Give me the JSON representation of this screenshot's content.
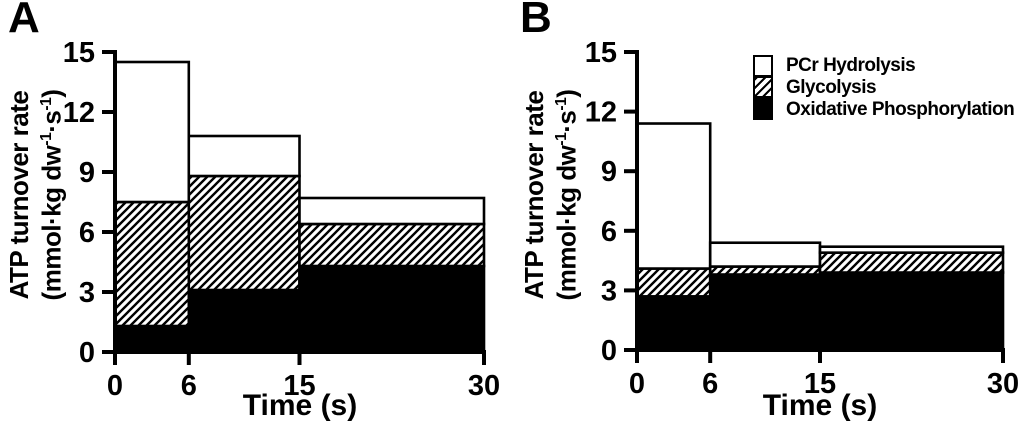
{
  "panels": [
    {
      "label": "A",
      "xlabel": "Time (s)",
      "ylabel_line1": "ATP turnover rate",
      "ylabel_open": "(mmol·kg dw",
      "ylabel_sup1": "-1",
      "ylabel_mid": "·s",
      "ylabel_sup2": "-1",
      "ylabel_close": ")"
    },
    {
      "label": "B",
      "xlabel": "Time (s)",
      "ylabel_line1": "ATP turnover rate",
      "ylabel_open": "(mmol·kg dw",
      "ylabel_sup1": "-1",
      "ylabel_mid": "·s",
      "ylabel_sup2": "-1",
      "ylabel_close": ")"
    }
  ],
  "legend": {
    "items": [
      {
        "label": "PCr Hydrolysis",
        "swatch": "white"
      },
      {
        "label": "Glycolysis",
        "swatch": "hatch"
      },
      {
        "label": "Oxidative Phosphorylation",
        "swatch": "black"
      }
    ]
  },
  "colors": {
    "ink": "#000000",
    "paper": "#ffffff"
  },
  "chart_data": [
    {
      "panel": "A",
      "type": "bar",
      "stacked": true,
      "title": "",
      "xlabel": "Time (s)",
      "ylabel": "ATP turnover rate (mmol·kg dw⁻¹·s⁻¹)",
      "x_edges": [
        0,
        6,
        15,
        30
      ],
      "categories": [
        "0-6 s",
        "6-15 s",
        "15-30 s"
      ],
      "series": [
        {
          "name": "Oxidative Phosphorylation",
          "fill": "black",
          "values": [
            1.3,
            3.1,
            4.3
          ]
        },
        {
          "name": "Glycolysis",
          "fill": "hatch",
          "values": [
            6.2,
            5.7,
            2.1
          ]
        },
        {
          "name": "PCr Hydrolysis",
          "fill": "white",
          "values": [
            7.0,
            2.0,
            1.3
          ]
        }
      ],
      "stack_totals": [
        14.5,
        10.8,
        7.7
      ],
      "x_ticks": [
        0,
        6,
        15,
        30
      ],
      "y_ticks": [
        0,
        3,
        6,
        9,
        12,
        15
      ],
      "xlim": [
        0,
        30
      ],
      "ylim": [
        0,
        15
      ],
      "grid": false,
      "legend_position": "none"
    },
    {
      "panel": "B",
      "type": "bar",
      "stacked": true,
      "title": "",
      "xlabel": "Time (s)",
      "ylabel": "ATP turnover rate (mmol·kg dw⁻¹·s⁻¹)",
      "x_edges": [
        0,
        6,
        15,
        30
      ],
      "categories": [
        "0-6 s",
        "6-15 s",
        "15-30 s"
      ],
      "series": [
        {
          "name": "Oxidative Phosphorylation",
          "fill": "black",
          "values": [
            2.7,
            3.8,
            3.9
          ]
        },
        {
          "name": "Glycolysis",
          "fill": "hatch",
          "values": [
            1.4,
            0.4,
            1.0
          ]
        },
        {
          "name": "PCr Hydrolysis",
          "fill": "white",
          "values": [
            7.3,
            1.2,
            0.3
          ]
        }
      ],
      "stack_totals": [
        11.4,
        5.4,
        5.2
      ],
      "x_ticks": [
        0,
        6,
        15,
        30
      ],
      "y_ticks": [
        0,
        3,
        6,
        9,
        12,
        15
      ],
      "xlim": [
        0,
        30
      ],
      "ylim": [
        0,
        15
      ],
      "grid": false,
      "legend_position": "top-right"
    }
  ]
}
